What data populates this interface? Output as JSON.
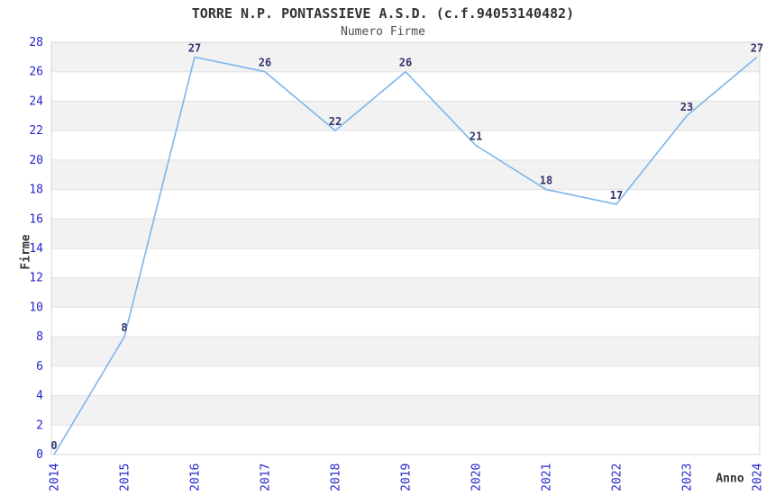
{
  "chart_data": {
    "type": "line",
    "title": "TORRE N.P. PONTASSIEVE A.S.D. (c.f.94053140482)",
    "subtitle": "Numero Firme",
    "xlabel": "Anno",
    "ylabel": "Firme",
    "categories": [
      "2014",
      "2015",
      "2016",
      "2017",
      "2018",
      "2019",
      "2020",
      "2021",
      "2022",
      "2023",
      "2024"
    ],
    "values": [
      0,
      8,
      27,
      26,
      22,
      26,
      21,
      18,
      17,
      23,
      27
    ],
    "ylim": [
      0,
      28
    ],
    "yticks": [
      0,
      2,
      4,
      6,
      8,
      10,
      12,
      14,
      16,
      18,
      20,
      22,
      24,
      26,
      28
    ],
    "grid": true,
    "legend": "none",
    "data_labels": true,
    "x_tick_rotation_deg": -90,
    "alternate_bands": true,
    "colors": {
      "line": "#7cb5ec",
      "band": "#f2f2f2",
      "gridline": "#e1e1e1",
      "border": "#d4d4d4",
      "tick_label": "#2525cc",
      "data_label": "#32326b",
      "title": "#333333",
      "subtitle": "#4f4f4f",
      "axis_title": "#333333"
    }
  }
}
